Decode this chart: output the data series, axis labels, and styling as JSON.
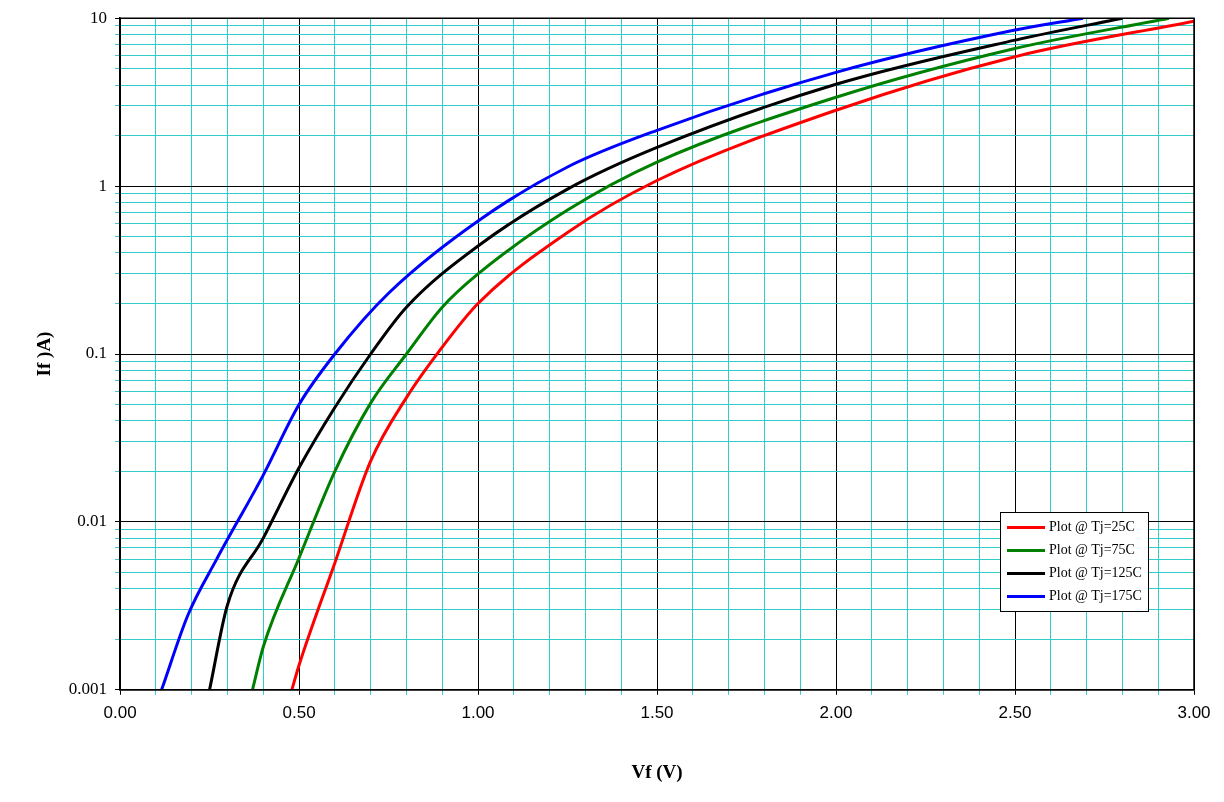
{
  "chart_data": {
    "type": "line",
    "xlabel": "Vf (V)",
    "ylabel": "If )A)",
    "log": "y",
    "grid": true,
    "legend": "bottom right",
    "marker": "none",
    "line_style": "solid",
    "xlim": [
      0,
      3
    ],
    "ylim": [
      0.001,
      10
    ],
    "xticks": [
      {
        "value": 0,
        "label": "0.00"
      },
      {
        "value": 0.1,
        "label": null
      },
      {
        "value": 0.2,
        "label": null
      },
      {
        "value": 0.3,
        "label": null
      },
      {
        "value": 0.4,
        "label": null
      },
      {
        "value": 0.5,
        "label": "0.50"
      },
      {
        "value": 0.6,
        "label": null
      },
      {
        "value": 0.7,
        "label": null
      },
      {
        "value": 0.8,
        "label": null
      },
      {
        "value": 0.9,
        "label": null
      },
      {
        "value": 1,
        "label": "1.00"
      },
      {
        "value": 1.1,
        "label": null
      },
      {
        "value": 1.2,
        "label": null
      },
      {
        "value": 1.3,
        "label": null
      },
      {
        "value": 1.4,
        "label": null
      },
      {
        "value": 1.5,
        "label": "1.50"
      },
      {
        "value": 1.6,
        "label": null
      },
      {
        "value": 1.7,
        "label": null
      },
      {
        "value": 1.8,
        "label": null
      },
      {
        "value": 1.9,
        "label": null
      },
      {
        "value": 2,
        "label": "2.00"
      },
      {
        "value": 2.1,
        "label": null
      },
      {
        "value": 2.2,
        "label": null
      },
      {
        "value": 2.3,
        "label": null
      },
      {
        "value": 2.4,
        "label": null
      },
      {
        "value": 2.5,
        "label": "2.50"
      },
      {
        "value": 2.6,
        "label": null
      },
      {
        "value": 2.7,
        "label": null
      },
      {
        "value": 2.8,
        "label": null
      },
      {
        "value": 2.9,
        "label": null
      },
      {
        "value": 3,
        "label": "3.00"
      }
    ],
    "yticks": [
      0.001,
      {
        "value": 0.002,
        "label": null
      },
      {
        "value": 0.003,
        "label": null
      },
      {
        "value": 0.004,
        "label": null
      },
      {
        "value": 0.005,
        "label": null
      },
      {
        "value": 0.006,
        "label": null
      },
      {
        "value": 0.007,
        "label": null
      },
      {
        "value": 0.008,
        "label": null
      },
      {
        "value": 0.009,
        "label": null
      },
      0.01,
      {
        "value": 0.02,
        "label": null
      },
      {
        "value": 0.03,
        "label": null
      },
      {
        "value": 0.04,
        "label": null
      },
      {
        "value": 0.05,
        "label": null
      },
      {
        "value": 0.06,
        "label": null
      },
      {
        "value": 0.07,
        "label": null
      },
      {
        "value": 0.08,
        "label": null
      },
      {
        "value": 0.09,
        "label": null
      },
      0.1,
      {
        "value": 0.2,
        "label": null
      },
      {
        "value": 0.3,
        "label": null
      },
      {
        "value": 0.4,
        "label": null
      },
      {
        "value": 0.5,
        "label": null
      },
      {
        "value": 0.6,
        "label": null
      },
      {
        "value": 0.7,
        "label": null
      },
      {
        "value": 0.8,
        "label": null
      },
      {
        "value": 0.9,
        "label": null
      },
      1,
      {
        "value": 2,
        "label": null
      },
      {
        "value": 3,
        "label": null
      },
      {
        "value": 4,
        "label": null
      },
      {
        "value": 5,
        "label": null
      },
      {
        "value": 6,
        "label": null
      },
      {
        "value": 7,
        "label": null
      },
      {
        "value": 8,
        "label": null
      },
      {
        "value": 9,
        "label": null
      },
      10
    ],
    "series": [
      {
        "name": "Plot @ Tj=25C",
        "color": "#ff0000",
        "x": [
          0.48,
          0.5,
          0.6,
          0.7,
          0.8,
          0.9,
          1.0,
          1.25,
          1.5,
          2.0,
          2.5,
          3.0
        ],
        "values": [
          0.001,
          0.0014,
          0.0057,
          0.023,
          0.055,
          0.11,
          0.2,
          0.53,
          1.08,
          2.83,
          5.9,
          9.6
        ]
      },
      {
        "name": "Plot @ Tj=75C",
        "color": "#008000",
        "x": [
          0.37,
          0.4,
          0.5,
          0.6,
          0.7,
          0.8,
          0.9,
          1.0,
          1.25,
          1.5,
          2.0,
          2.5,
          2.93
        ],
        "values": [
          0.001,
          0.0018,
          0.0061,
          0.02,
          0.051,
          0.1,
          0.19,
          0.3,
          0.72,
          1.39,
          3.38,
          6.6,
          10
        ]
      },
      {
        "name": "Plot @ Tj=125C",
        "color": "#000000",
        "x": [
          0.25,
          0.3,
          0.4,
          0.5,
          0.6,
          0.7,
          0.8,
          1.0,
          1.25,
          1.5,
          2.0,
          2.5,
          2.8
        ],
        "values": [
          0.001,
          0.0032,
          0.008,
          0.021,
          0.048,
          0.1,
          0.19,
          0.44,
          0.96,
          1.7,
          4.04,
          7.4,
          10
        ]
      },
      {
        "name": "Plot @ Tj=175C",
        "color": "#0000ff",
        "x": [
          0.116,
          0.19,
          0.27,
          0.4,
          0.5,
          0.6,
          0.75,
          1.0,
          1.25,
          1.5,
          2.0,
          2.5,
          2.69
        ],
        "values": [
          0.001,
          0.0028,
          0.006,
          0.019,
          0.05,
          0.1,
          0.23,
          0.62,
          1.3,
          2.15,
          4.76,
          8.5,
          10
        ]
      }
    ]
  }
}
